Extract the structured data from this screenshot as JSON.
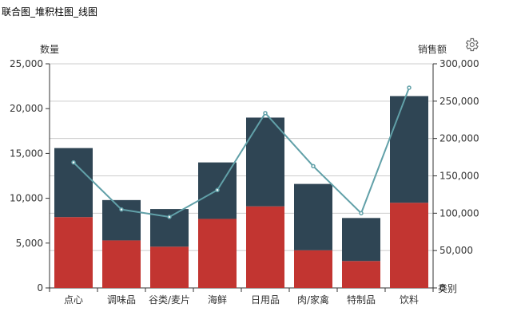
{
  "page": {
    "title": "联合图_堆积柱图_线图"
  },
  "toolbar": {
    "settings_icon": "gear-icon"
  },
  "chart_data": {
    "type": "bar",
    "categories": [
      "点心",
      "调味品",
      "谷类/麦片",
      "海鲜",
      "日用品",
      "肉/家禽",
      "特制品",
      "饮料"
    ],
    "x_axis_name": "类别",
    "y_left": {
      "label": "数量",
      "lim": [
        0,
        25000
      ],
      "ticks": [
        "0",
        "5,000",
        "10,000",
        "15,000",
        "20,000",
        "25,000"
      ]
    },
    "y_right": {
      "label": "销售额",
      "lim": [
        0,
        300000
      ],
      "ticks": [
        "0",
        "50,000",
        "100,000",
        "150,000",
        "200,000",
        "250,000",
        "300,000"
      ]
    },
    "series": [
      {
        "type": "bar",
        "stack": "qty",
        "color": "#c23531",
        "values": [
          7900,
          5300,
          4600,
          7700,
          9100,
          4200,
          3000,
          9500
        ]
      },
      {
        "type": "bar",
        "stack": "qty",
        "color": "#2f4554",
        "values": [
          7700,
          4500,
          4200,
          6300,
          9900,
          7400,
          4800,
          11900
        ]
      },
      {
        "type": "line",
        "axis": "right",
        "color": "#61a0a8",
        "values": [
          168000,
          105000,
          95000,
          131000,
          234000,
          163000,
          100000,
          268000
        ]
      }
    ],
    "grid": true
  }
}
